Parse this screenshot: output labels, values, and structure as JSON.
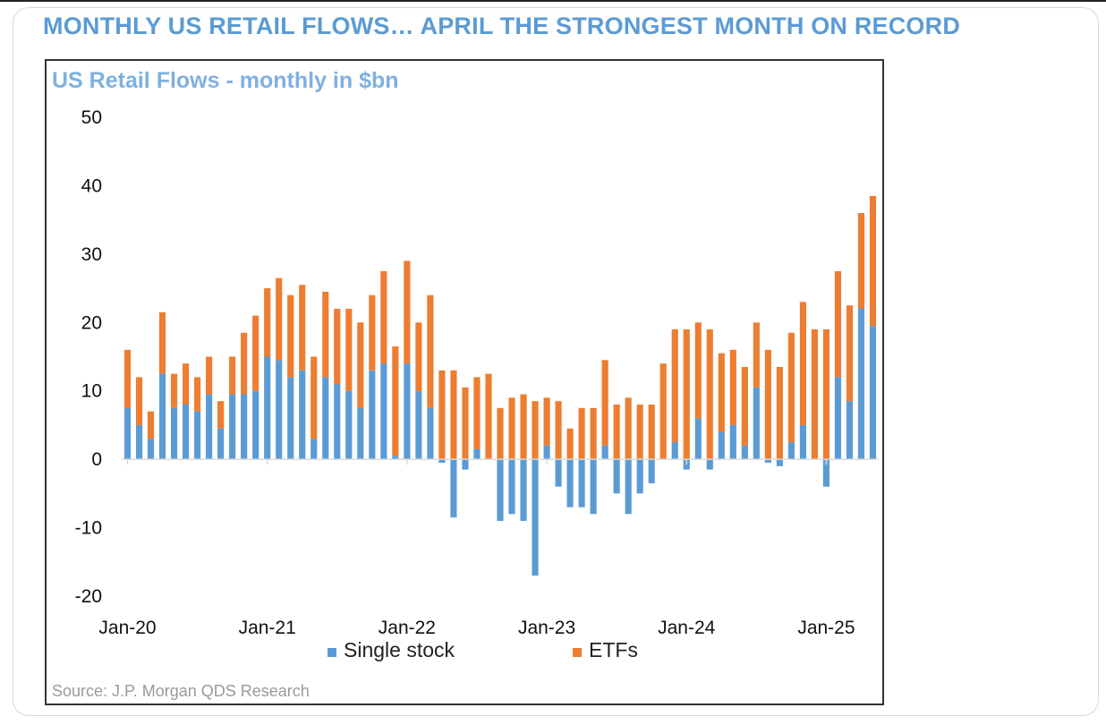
{
  "headline": "MONTHLY US RETAIL FLOWS… APRIL THE STRONGEST MONTH ON RECORD",
  "source": "Source: J.P. Morgan QDS Research",
  "chart_data": {
    "type": "bar",
    "stacked": true,
    "title": "US Retail Flows - monthly in $bn",
    "ylim": [
      -20,
      50
    ],
    "yticks": [
      50,
      40,
      30,
      20,
      10,
      0,
      -10,
      -20
    ],
    "x_tick_labels": [
      "Jan-20",
      "Jan-21",
      "Jan-22",
      "Jan-23",
      "Jan-24",
      "Jan-25"
    ],
    "x_tick_index": [
      0,
      12,
      24,
      36,
      48,
      60
    ],
    "legend_position": "bottom",
    "colors": {
      "single": "#5b9bd5",
      "etf": "#ed7d31"
    },
    "series": [
      {
        "name": "Single stock",
        "values": [
          7.5,
          5,
          3,
          12.5,
          7.5,
          8,
          7,
          9.5,
          4.5,
          9.5,
          9.5,
          10,
          15,
          14.5,
          12,
          13,
          3,
          12,
          11,
          10,
          7.5,
          13,
          14,
          0.5,
          14,
          10,
          7.5,
          -0.5,
          -8.5,
          -1.5,
          1.5,
          0,
          -9,
          -8,
          -9,
          -17,
          2,
          -4,
          -7,
          -7,
          -8,
          2,
          -5,
          -8,
          -5,
          -3.5,
          0,
          2.5,
          -1.5,
          6,
          -1.5,
          4,
          5,
          2,
          10.5,
          -0.5,
          -1,
          2.5,
          5,
          0,
          -4,
          12,
          8.5,
          22,
          19.5
        ]
      },
      {
        "name": "ETFs",
        "values": [
          8.5,
          7,
          4,
          9,
          5,
          6,
          5,
          5.5,
          4,
          5.5,
          9,
          11,
          10,
          12,
          12,
          12.5,
          12,
          12.5,
          11,
          12,
          12.5,
          11,
          13.5,
          16,
          15,
          10,
          16.5,
          13,
          13,
          10.5,
          10.5,
          12.5,
          7.5,
          9,
          9.5,
          8.5,
          7,
          8.5,
          4.5,
          7.5,
          7.5,
          12.5,
          8,
          9,
          8,
          8,
          14,
          16.5,
          19,
          14,
          19,
          11.5,
          11,
          11.5,
          9.5,
          16,
          13.5,
          16,
          18,
          19,
          19,
          15.5,
          14,
          14,
          19
        ]
      }
    ]
  }
}
